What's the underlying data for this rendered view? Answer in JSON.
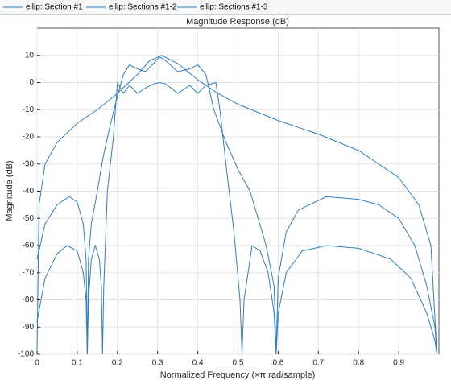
{
  "chart_data": {
    "type": "line",
    "title": "Magnitude Response (dB)",
    "x_label": "Normalized Frequency (×π rad/sample)",
    "y_label": "Magnitude (dB)",
    "xlim": [
      0,
      1
    ],
    "ylim": [
      -100,
      20
    ],
    "xticks": [
      0,
      0.1,
      0.2,
      0.3,
      0.4,
      0.5,
      0.6,
      0.7,
      0.8,
      0.9
    ],
    "yticks": [
      -100,
      -90,
      -80,
      -70,
      -60,
      -50,
      -40,
      -30,
      -20,
      -10,
      0,
      10
    ],
    "grid": true,
    "legend": "top",
    "series": [
      {
        "name": "ellip: Section #1",
        "color": "#2f7fc1",
        "x": [
          0,
          0.005,
          0.02,
          0.05,
          0.1,
          0.15,
          0.2,
          0.25,
          0.28,
          0.31,
          0.35,
          0.4,
          0.45,
          0.5,
          0.6,
          0.7,
          0.8,
          0.9,
          0.95,
          0.98,
          0.995
        ],
        "values": [
          -100,
          -45,
          -30,
          -22,
          -15,
          -10,
          -4,
          3,
          8,
          10,
          7,
          1,
          -4,
          -8,
          -14,
          -19,
          -25,
          -35,
          -45,
          -60,
          -100
        ]
      },
      {
        "name": "ellip: Sections #1-2",
        "color": "#2f7fc1",
        "x": [
          0,
          0.02,
          0.05,
          0.08,
          0.1,
          0.115,
          0.122,
          0.125,
          0.128,
          0.135,
          0.15,
          0.165,
          0.18,
          0.2,
          0.215,
          0.23,
          0.25,
          0.27,
          0.29,
          0.305,
          0.32,
          0.35,
          0.38,
          0.4,
          0.42,
          0.44,
          0.47,
          0.5,
          0.53,
          0.57,
          0.59,
          0.595,
          0.6,
          0.62,
          0.65,
          0.72,
          0.8,
          0.85,
          0.9,
          0.94,
          0.97,
          0.99,
          0.995
        ],
        "values": [
          -65,
          -52,
          -45,
          -42,
          -44,
          -52,
          -65,
          -100,
          -65,
          -52,
          -40,
          -27,
          -17,
          -5,
          3,
          6.5,
          5,
          4,
          7,
          9.5,
          8,
          4,
          5,
          6.5,
          3,
          -10,
          -22,
          -32,
          -40,
          -60,
          -75,
          -100,
          -72,
          -55,
          -47,
          -42,
          -43,
          -45,
          -50,
          -60,
          -75,
          -90,
          -100
        ]
      },
      {
        "name": "ellip: Sections #1-3",
        "color": "#2f7fc1",
        "x": [
          0,
          0.02,
          0.05,
          0.075,
          0.1,
          0.115,
          0.122,
          0.125,
          0.128,
          0.135,
          0.145,
          0.155,
          0.16,
          0.163,
          0.166,
          0.175,
          0.19,
          0.2,
          0.215,
          0.23,
          0.25,
          0.27,
          0.29,
          0.305,
          0.32,
          0.35,
          0.38,
          0.4,
          0.42,
          0.445,
          0.455,
          0.47,
          0.49,
          0.505,
          0.51,
          0.515,
          0.535,
          0.555,
          0.575,
          0.59,
          0.595,
          0.6,
          0.62,
          0.66,
          0.72,
          0.8,
          0.88,
          0.93,
          0.97,
          0.99,
          0.995
        ],
        "values": [
          -88,
          -72,
          -63,
          -60,
          -62,
          -70,
          -80,
          -100,
          -80,
          -65,
          -60,
          -65,
          -75,
          -100,
          -75,
          -40,
          -20,
          0,
          -4,
          -1,
          -4,
          -2,
          -0.5,
          0,
          -0.5,
          -4,
          -1,
          -4,
          -1,
          0,
          -10,
          -30,
          -55,
          -80,
          -100,
          -80,
          -60,
          -62,
          -70,
          -85,
          -100,
          -85,
          -70,
          -62,
          -60,
          -61,
          -65,
          -72,
          -85,
          -95,
          -100
        ]
      }
    ]
  }
}
